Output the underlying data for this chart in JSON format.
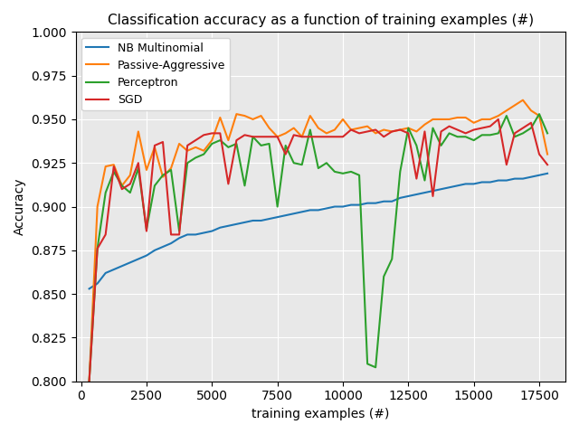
{
  "title": "Classification accuracy as a function of training examples (#)",
  "xlabel": "training examples (#)",
  "ylabel": "Accuracy",
  "ylim": [
    0.8,
    1.0
  ],
  "xlim": [
    -200,
    18500
  ],
  "grid": true,
  "series": {
    "NB Multinomial": {
      "color": "#1f77b4",
      "x": [
        312,
        625,
        937,
        1250,
        1562,
        1875,
        2187,
        2500,
        2812,
        3125,
        3437,
        3750,
        4062,
        4375,
        4687,
        5000,
        5312,
        5625,
        5937,
        6250,
        6562,
        6875,
        7187,
        7500,
        7812,
        8125,
        8437,
        8750,
        9062,
        9375,
        9687,
        10000,
        10312,
        10625,
        10937,
        11250,
        11562,
        11875,
        12187,
        12500,
        12812,
        13125,
        13437,
        13750,
        14062,
        14375,
        14687,
        15000,
        15312,
        15625,
        15937,
        16250,
        16562,
        16875,
        17187,
        17500,
        17812
      ],
      "y": [
        0.853,
        0.856,
        0.862,
        0.864,
        0.866,
        0.868,
        0.87,
        0.872,
        0.875,
        0.877,
        0.879,
        0.882,
        0.884,
        0.884,
        0.885,
        0.886,
        0.888,
        0.889,
        0.89,
        0.891,
        0.892,
        0.892,
        0.893,
        0.894,
        0.895,
        0.896,
        0.897,
        0.898,
        0.898,
        0.899,
        0.9,
        0.9,
        0.901,
        0.901,
        0.902,
        0.902,
        0.903,
        0.903,
        0.905,
        0.906,
        0.907,
        0.908,
        0.909,
        0.91,
        0.911,
        0.912,
        0.913,
        0.913,
        0.914,
        0.914,
        0.915,
        0.915,
        0.916,
        0.916,
        0.917,
        0.918,
        0.919
      ]
    },
    "Passive-Aggressive": {
      "color": "#ff7f0e",
      "x": [
        312,
        625,
        937,
        1250,
        1562,
        1875,
        2187,
        2500,
        2812,
        3125,
        3437,
        3750,
        4062,
        4375,
        4687,
        5000,
        5312,
        5625,
        5937,
        6250,
        6562,
        6875,
        7187,
        7500,
        7812,
        8125,
        8437,
        8750,
        9062,
        9375,
        9687,
        10000,
        10312,
        10625,
        10937,
        11250,
        11562,
        11875,
        12187,
        12500,
        12812,
        13125,
        13437,
        13750,
        14062,
        14375,
        14687,
        15000,
        15312,
        15625,
        15937,
        16250,
        16562,
        16875,
        17187,
        17500,
        17812
      ],
      "y": [
        0.8,
        0.9,
        0.923,
        0.924,
        0.912,
        0.918,
        0.943,
        0.921,
        0.934,
        0.917,
        0.922,
        0.936,
        0.932,
        0.934,
        0.932,
        0.938,
        0.951,
        0.938,
        0.953,
        0.952,
        0.95,
        0.952,
        0.945,
        0.94,
        0.942,
        0.945,
        0.94,
        0.952,
        0.945,
        0.942,
        0.944,
        0.95,
        0.944,
        0.945,
        0.946,
        0.942,
        0.944,
        0.943,
        0.944,
        0.945,
        0.943,
        0.947,
        0.95,
        0.95,
        0.95,
        0.951,
        0.951,
        0.948,
        0.95,
        0.95,
        0.952,
        0.955,
        0.958,
        0.961,
        0.955,
        0.952,
        0.93
      ]
    },
    "Perceptron": {
      "color": "#2ca02c",
      "x": [
        312,
        625,
        937,
        1250,
        1562,
        1875,
        2187,
        2500,
        2812,
        3125,
        3437,
        3750,
        4062,
        4375,
        4687,
        5000,
        5312,
        5625,
        5937,
        6250,
        6562,
        6875,
        7187,
        7500,
        7812,
        8125,
        8437,
        8750,
        9062,
        9375,
        9687,
        10000,
        10312,
        10625,
        10937,
        11250,
        11562,
        11875,
        12187,
        12500,
        12812,
        13125,
        13437,
        13750,
        14062,
        14375,
        14687,
        15000,
        15312,
        15625,
        15937,
        16250,
        16562,
        16875,
        17187,
        17500,
        17812
      ],
      "y": [
        0.8,
        0.876,
        0.908,
        0.92,
        0.912,
        0.908,
        0.922,
        0.887,
        0.912,
        0.918,
        0.921,
        0.886,
        0.925,
        0.928,
        0.93,
        0.936,
        0.938,
        0.934,
        0.936,
        0.912,
        0.94,
        0.935,
        0.936,
        0.9,
        0.935,
        0.925,
        0.924,
        0.944,
        0.922,
        0.925,
        0.92,
        0.919,
        0.92,
        0.918,
        0.81,
        0.808,
        0.86,
        0.87,
        0.92,
        0.945,
        0.935,
        0.915,
        0.945,
        0.935,
        0.942,
        0.94,
        0.94,
        0.938,
        0.941,
        0.941,
        0.942,
        0.952,
        0.94,
        0.942,
        0.945,
        0.953,
        0.942
      ]
    },
    "SGD": {
      "color": "#d62728",
      "x": [
        312,
        625,
        937,
        1250,
        1562,
        1875,
        2187,
        2500,
        2812,
        3125,
        3437,
        3750,
        4062,
        4375,
        4687,
        5000,
        5312,
        5625,
        5937,
        6250,
        6562,
        6875,
        7187,
        7500,
        7812,
        8125,
        8437,
        8750,
        9062,
        9375,
        9687,
        10000,
        10312,
        10625,
        10937,
        11250,
        11562,
        11875,
        12187,
        12500,
        12812,
        13125,
        13437,
        13750,
        14062,
        14375,
        14687,
        15000,
        15312,
        15625,
        15937,
        16250,
        16562,
        16875,
        17187,
        17500,
        17812
      ],
      "y": [
        0.8,
        0.876,
        0.884,
        0.923,
        0.91,
        0.913,
        0.925,
        0.886,
        0.935,
        0.937,
        0.884,
        0.884,
        0.935,
        0.938,
        0.941,
        0.942,
        0.942,
        0.913,
        0.938,
        0.941,
        0.94,
        0.94,
        0.94,
        0.94,
        0.93,
        0.941,
        0.94,
        0.94,
        0.94,
        0.94,
        0.94,
        0.94,
        0.944,
        0.942,
        0.943,
        0.944,
        0.94,
        0.943,
        0.944,
        0.942,
        0.916,
        0.943,
        0.906,
        0.943,
        0.946,
        0.944,
        0.942,
        0.944,
        0.945,
        0.946,
        0.95,
        0.924,
        0.942,
        0.945,
        0.948,
        0.93,
        0.924
      ]
    }
  },
  "legend_order": [
    "NB Multinomial",
    "Passive-Aggressive",
    "Perceptron",
    "SGD"
  ],
  "xticks": [
    0,
    2500,
    5000,
    7500,
    10000,
    12500,
    15000,
    17500
  ],
  "yticks": [
    0.8,
    0.825,
    0.85,
    0.875,
    0.9,
    0.925,
    0.95,
    0.975,
    1.0
  ],
  "facecolor": "#e8e8e8",
  "grid_color": "white",
  "grid_linewidth": 0.8
}
